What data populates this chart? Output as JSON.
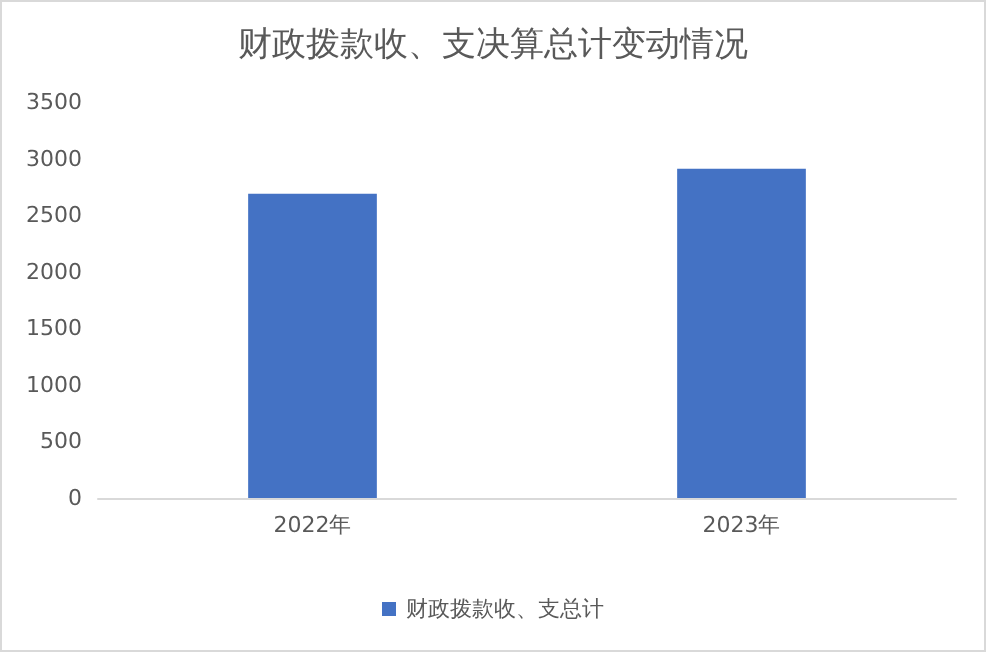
{
  "chart_data": {
    "type": "bar",
    "title": "财政拨款收、支决算总计变动情况",
    "categories": [
      "2022年",
      "2023年"
    ],
    "series": [
      {
        "name": "财政拨款收、支总计",
        "color": "#4472c4",
        "values": [
          2690,
          2910
        ]
      }
    ],
    "ylim": [
      0,
      3500
    ],
    "yticks": [
      0,
      500,
      1000,
      1500,
      2000,
      2500,
      3000,
      3500
    ],
    "grid": false,
    "legend": "bottom"
  }
}
